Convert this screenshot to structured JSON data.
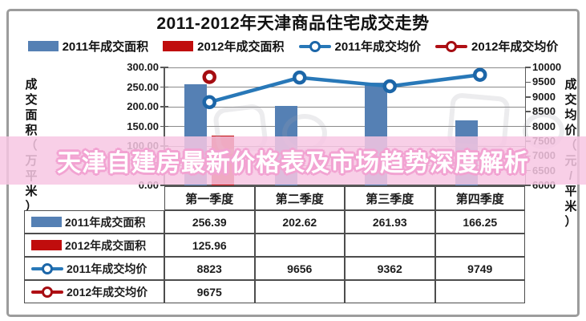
{
  "banner": {
    "text": "天津自建房最新价格表及市场趋势深度解析"
  },
  "chart_data": {
    "type": "combo (clustered bar + line, dual axis)",
    "title": "2011-2012年天津商品住宅成交走势",
    "categories": [
      "第一季度",
      "第二季度",
      "第三季度",
      "第四季度"
    ],
    "series": [
      {
        "name": "2011年成交面积",
        "kind": "bar",
        "axis": "left",
        "color": "#5580B4",
        "marker_color": "#5580B4",
        "values": [
          256.39,
          202.62,
          261.93,
          166.25
        ]
      },
      {
        "name": "2012年成交面积",
        "kind": "bar",
        "axis": "left",
        "color": "#C00D0D",
        "marker_color": "#C00D0D",
        "values": [
          125.96,
          null,
          null,
          null
        ]
      },
      {
        "name": "2011年成交均价",
        "kind": "line",
        "axis": "right",
        "color": "#2878B8",
        "marker_color": "#1C66A8",
        "values": [
          8823,
          9656,
          9362,
          9749
        ]
      },
      {
        "name": "2012年成交均价",
        "kind": "line",
        "axis": "right",
        "color": "#B01015",
        "marker_color": "#A50D12",
        "values": [
          9675,
          null,
          null,
          null
        ]
      }
    ],
    "left_axis": {
      "title": "成交面积（万平米）",
      "min": 0,
      "max": 300,
      "step": 50,
      "labels": [
        "300.00",
        "250.00",
        "200.00",
        "150.00",
        "100.00",
        "50.00",
        "0.00"
      ]
    },
    "right_axis": {
      "title": "成交均价（元/平米）",
      "min": 6000,
      "max": 10000,
      "step": 500,
      "labels": [
        "10000",
        "9500",
        "9000",
        "8500",
        "8000",
        "7500",
        "7000",
        "6500",
        "6000"
      ]
    },
    "grid": true,
    "legend_position": "top",
    "ylim_left": [
      0,
      300
    ],
    "ylim_right": [
      6000,
      10000
    ]
  },
  "table": {
    "col_headers": [
      "第一季度",
      "第二季度",
      "第三季度",
      "第四季度"
    ],
    "rows": [
      {
        "label": "2011年成交面积",
        "values": [
          "256.39",
          "202.62",
          "261.93",
          "166.25"
        ]
      },
      {
        "label": "2012年成交面积",
        "values": [
          "125.96",
          "",
          "",
          ""
        ]
      },
      {
        "label": "2011年成交均价",
        "values": [
          "8823",
          "9656",
          "9362",
          "9749"
        ]
      },
      {
        "label": "2012年成交均价",
        "values": [
          "9675",
          "",
          "",
          ""
        ]
      }
    ]
  },
  "colors": {
    "bar_2011": "#5580B4",
    "bar_2012": "#C00D0D",
    "line_2011": "#2878B8",
    "line_2012": "#B01015",
    "banner_bg": "#F7C7E3",
    "banner_outline": "#F2A3D2",
    "gridline": "#8A8A8A",
    "table_border": "#4D4D4D"
  }
}
